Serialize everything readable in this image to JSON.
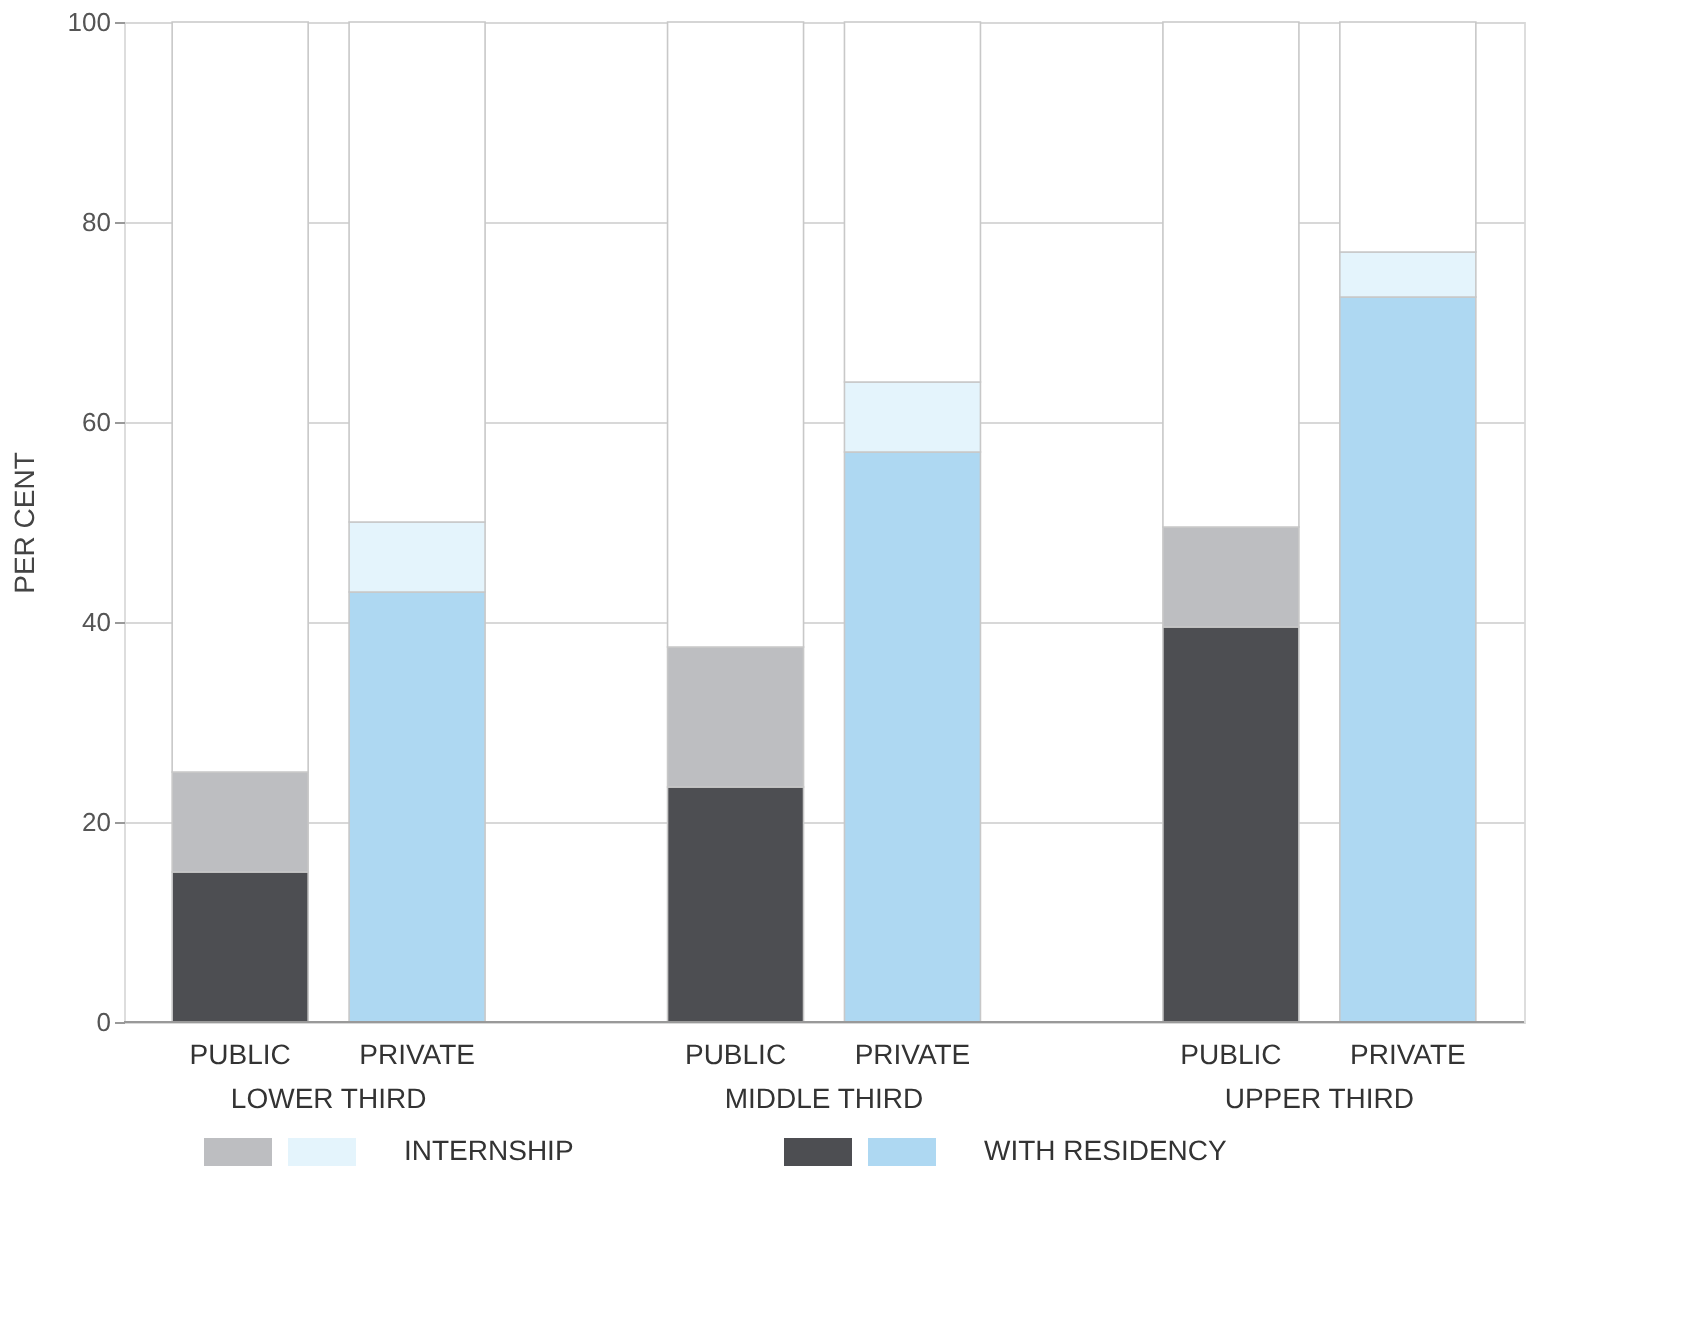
{
  "chart_data": {
    "type": "bar",
    "stacked": true,
    "ylabel": "PER CENT",
    "categories": [
      "PUBLIC",
      "PRIVATE",
      "PUBLIC",
      "PRIVATE",
      "PUBLIC",
      "PRIVATE"
    ],
    "annotations": [
      "LOWER THIRD",
      "MIDDLE THIRD",
      "UPPER THIRD"
    ],
    "series": [
      {
        "name": "WITH RESIDENCY",
        "colors": [
          "#4d4e52",
          "#aed8f2",
          "#4d4e52",
          "#aed8f2",
          "#4d4e52",
          "#aed8f2"
        ],
        "values": [
          15,
          43,
          23.5,
          57,
          39.5,
          72.5
        ]
      },
      {
        "name": "INTERNSHIP",
        "colors": [
          "#bdbec1",
          "#e4f4fc",
          "#bdbec1",
          "#e4f4fc",
          "#bdbec1",
          "#e4f4fc"
        ],
        "values": [
          10,
          7,
          14,
          7,
          10,
          4.5
        ]
      },
      {
        "colors": [
          "#ffffff",
          "#ffffff",
          "#ffffff",
          "#ffffff",
          "#ffffff",
          "#ffffff"
        ],
        "values": [
          75,
          50,
          62.5,
          36,
          50.5,
          23
        ]
      }
    ],
    "ylim": [
      0,
      100
    ],
    "yticks": [
      0,
      20,
      40,
      60,
      80,
      100
    ],
    "grid": "y",
    "legend": "bottom"
  }
}
